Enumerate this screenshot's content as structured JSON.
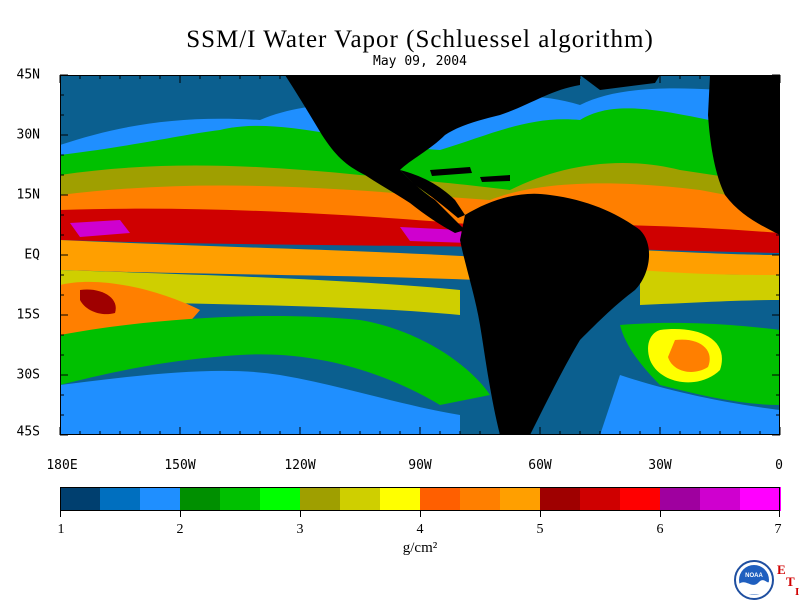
{
  "title": "SSM/I Water Vapor (Schluessel algorithm)",
  "date": "May 09, 2004",
  "lat_labels": [
    "45N",
    "30N",
    "15N",
    "EQ",
    "15S",
    "30S",
    "45S"
  ],
  "lon_labels": [
    "180E",
    "150W",
    "120W",
    "90W",
    "60W",
    "30W",
    "0"
  ],
  "colorbar": {
    "ticks": [
      "1",
      "2",
      "3",
      "4",
      "5",
      "6",
      "7"
    ],
    "units": "g/cm²",
    "colors": [
      "#003f6f",
      "#006fbf",
      "#1f8fff",
      "#008f00",
      "#00c000",
      "#00ff00",
      "#9f9f00",
      "#cfcf00",
      "#ffff00",
      "#ff5f00",
      "#ff7f00",
      "#ff9f00",
      "#9f0000",
      "#cf0000",
      "#ff0000",
      "#9f009f",
      "#cf00cf",
      "#ff00ff"
    ]
  },
  "map_colors": {
    "land": "#000000",
    "background": "#004f7f"
  },
  "logo": {
    "text": "NOAA",
    "side_letters": [
      "E",
      "T",
      "I"
    ]
  }
}
